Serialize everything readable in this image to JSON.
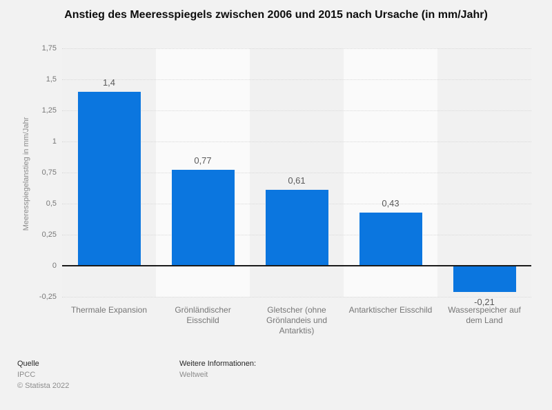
{
  "title": "Anstieg des Meeresspiegels zwischen 2006 und 2015 nach Ursache (in mm/Jahr)",
  "chart_data": {
    "type": "bar",
    "title": "Anstieg des Meeresspiegels zwischen 2006 und 2015 nach Ursache (in mm/Jahr)",
    "categories": [
      "Thermale Expansion",
      "Grönländischer Eisschild",
      "Gletscher (ohne Grönlandeis und Antarktis)",
      "Antarktischer Eisschild",
      "Wasserspeicher auf dem Land"
    ],
    "values": [
      1.4,
      0.77,
      0.61,
      0.43,
      -0.21
    ],
    "value_labels": [
      "1,4",
      "0,77",
      "0,61",
      "0,43",
      "-0,21"
    ],
    "xlabel": "",
    "ylabel": "Meeresspiegelanstieg in mm/Jahr",
    "ylim": [
      -0.25,
      1.75
    ],
    "tick_values": [
      1.75,
      1.5,
      1.25,
      1,
      0.75,
      0.5,
      0.25,
      0,
      -0.25
    ],
    "tick_labels": [
      "1,75",
      "1,5",
      "1,25",
      "1",
      "0,75",
      "0,5",
      "0,25",
      "0",
      "-0,25"
    ],
    "grid": true,
    "legend": "none",
    "bar_color": "#0b76df"
  },
  "colors": {
    "background": "#f2f2f2",
    "band_dark": "#f1f1f1",
    "band_light": "#fafafa",
    "gridline": "#d9d9d9",
    "zero_line": "#1a1a1a",
    "bar": "#0b76df",
    "title_text": "#0d0d0d",
    "tick_text": "#767676",
    "value_text": "#595959",
    "category_text": "#767676",
    "ylabel_text": "#8a8a8a",
    "footer_label_text": "#262626",
    "footer_value_text": "#8c8c8c"
  },
  "footer": {
    "source_label": "Quelle",
    "source_value": "IPCC",
    "copyright": "© Statista 2022",
    "info_label": "Weitere Informationen:",
    "info_value": "Weltweit"
  }
}
